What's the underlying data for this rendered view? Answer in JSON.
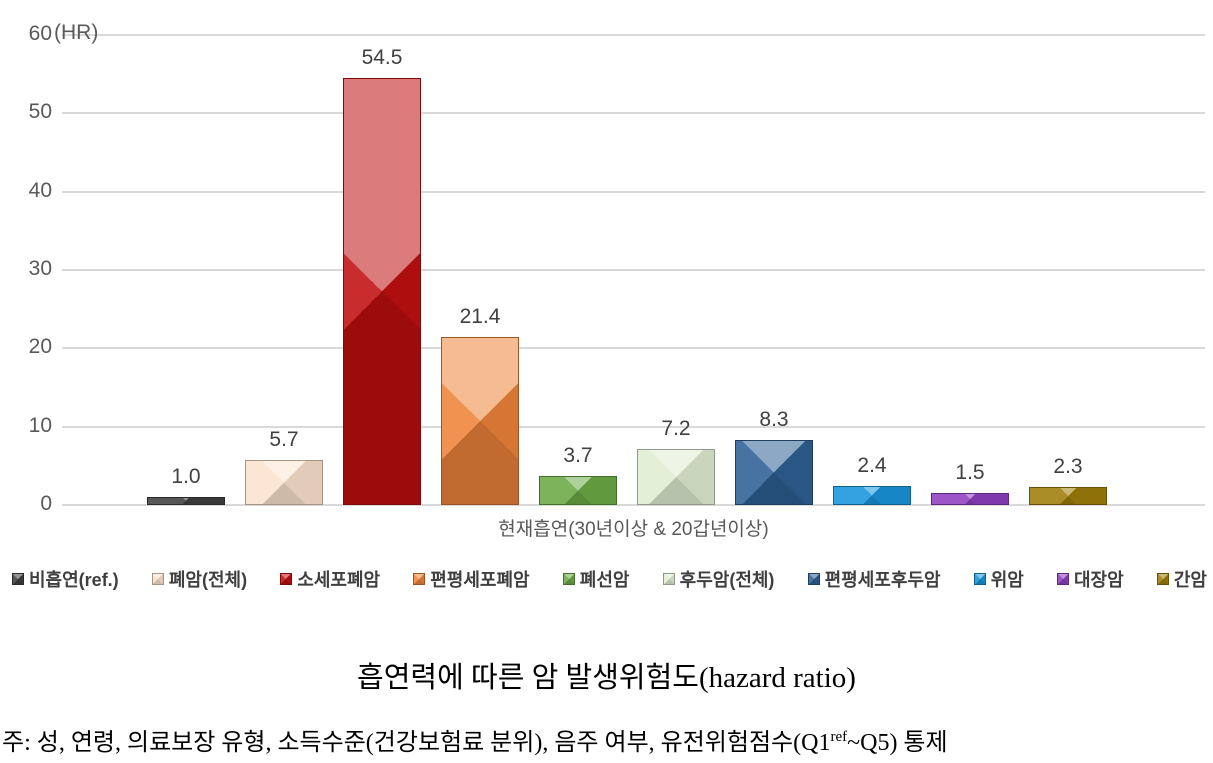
{
  "chart_data": {
    "type": "bar",
    "title": "흡연력에 따른 암 발생위험도(hazard ratio)",
    "unit_label": "(HR)",
    "x_category": "현재흡연(30년이상 & 20갑년이상)",
    "ylim": [
      0,
      60
    ],
    "ytick_step": 10,
    "grid": true,
    "legend_position": "bottom",
    "series": [
      {
        "name": "비흡연(ref.)",
        "value": 1.0,
        "label": "1.0",
        "color": "#3f3f3f"
      },
      {
        "name": "폐암(전체)",
        "value": 5.7,
        "label": "5.7",
        "color": "#fbe3cd"
      },
      {
        "name": "소세포폐암",
        "value": 54.5,
        "label": "54.5",
        "color": "#c00f0f"
      },
      {
        "name": "편평세포폐암",
        "value": 21.4,
        "label": "21.4",
        "color": "#ed833a"
      },
      {
        "name": "폐선암",
        "value": 3.7,
        "label": "3.7",
        "color": "#6baa45"
      },
      {
        "name": "후두암(전체)",
        "value": 7.2,
        "label": "7.2",
        "color": "#dfedd2"
      },
      {
        "name": "편평세포후두암",
        "value": 8.3,
        "label": "8.3",
        "color": "#2d6094"
      },
      {
        "name": "위암",
        "value": 2.4,
        "label": "2.4",
        "color": "#1895dc"
      },
      {
        "name": "대장암",
        "value": 1.5,
        "label": "1.5",
        "color": "#8e3fc0"
      },
      {
        "name": "간암",
        "value": 2.3,
        "label": "2.3",
        "color": "#9e7d0a"
      }
    ]
  },
  "footnote": {
    "pre": "주: 성, 연령, 의료보장 유형, 소득수준(건강보험료 분위), 음주 여부, 유전위험점수(Q1",
    "sup": "ref",
    "post": "~Q5) 통제"
  }
}
